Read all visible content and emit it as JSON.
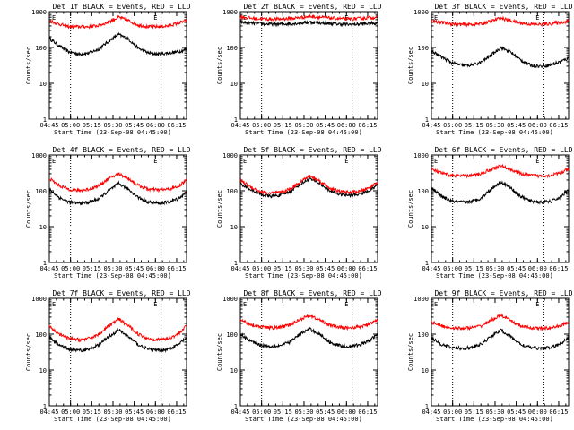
{
  "colors": {
    "events": "#000000",
    "lld": "#ff0000",
    "axis": "#000000",
    "background": "#ffffff"
  },
  "common": {
    "xlabel": "Start Time (23-Sep-08 04:45:00)",
    "ylabel": "Counts/sec",
    "xticks": [
      "04:45",
      "05:00",
      "05:15",
      "05:30",
      "05:45",
      "06:00",
      "06:15"
    ],
    "yticks": [
      "1",
      "10",
      "100",
      "1000"
    ],
    "corner_marker": "E"
  },
  "chart_data": [
    {
      "type": "line",
      "title": "Det 1f BLACK = Events, RED = LLD",
      "xlabel": "Start Time (23-Sep-08 04:45:00)",
      "ylabel": "Counts/sec",
      "x": [
        "04:45",
        "04:52",
        "04:59",
        "05:06",
        "05:13",
        "05:20",
        "05:27",
        "05:34",
        "05:41",
        "05:48",
        "05:55",
        "06:02",
        "06:09",
        "06:16",
        "06:22"
      ],
      "series": [
        {
          "name": "BLACK = Events",
          "values": [
            180,
            110,
            75,
            65,
            70,
            90,
            150,
            230,
            170,
            95,
            70,
            65,
            70,
            75,
            90
          ]
        },
        {
          "name": "RED = LLD",
          "values": [
            560,
            450,
            380,
            380,
            380,
            410,
            520,
            700,
            560,
            420,
            380,
            380,
            400,
            480,
            560
          ]
        }
      ],
      "ylim": [
        1,
        1000
      ],
      "yscale": "log",
      "xlim": [
        "04:45",
        "06:22"
      ],
      "vlines": [
        "05:00",
        "06:04"
      ],
      "grid": false
    },
    {
      "type": "line",
      "title": "Det 2f BLACK = Events, RED = LLD",
      "xlabel": "Start Time (23-Sep-08 04:45:00)",
      "ylabel": "Counts/sec",
      "x": [
        "04:45",
        "04:52",
        "04:59",
        "05:06",
        "05:13",
        "05:20",
        "05:27",
        "05:34",
        "05:41",
        "05:48",
        "05:55",
        "06:02",
        "06:09",
        "06:16",
        "06:22"
      ],
      "series": [
        {
          "name": "BLACK = Events",
          "values": [
            520,
            480,
            460,
            450,
            450,
            460,
            480,
            510,
            490,
            470,
            450,
            440,
            450,
            470,
            480
          ]
        },
        {
          "name": "RED = LLD",
          "values": [
            720,
            660,
            630,
            620,
            620,
            640,
            680,
            740,
            700,
            660,
            640,
            620,
            640,
            680,
            700
          ]
        }
      ],
      "ylim": [
        1,
        1000
      ],
      "yscale": "log",
      "xlim": [
        "04:45",
        "06:22"
      ],
      "vlines": [
        "05:00",
        "06:04"
      ],
      "grid": false
    },
    {
      "type": "line",
      "title": "Det 3f BLACK = Events, RED = LLD",
      "xlabel": "Start Time (23-Sep-08 04:45:00)",
      "ylabel": "Counts/sec",
      "x": [
        "04:45",
        "04:52",
        "04:59",
        "05:06",
        "05:13",
        "05:20",
        "05:27",
        "05:34",
        "05:41",
        "05:48",
        "05:55",
        "06:02",
        "06:09",
        "06:16",
        "06:22"
      ],
      "series": [
        {
          "name": "BLACK = Events",
          "values": [
            80,
            55,
            38,
            32,
            32,
            38,
            60,
            100,
            75,
            45,
            32,
            30,
            32,
            40,
            50
          ]
        },
        {
          "name": "RED = LLD",
          "values": [
            560,
            500,
            460,
            440,
            440,
            460,
            540,
            660,
            560,
            480,
            450,
            440,
            460,
            500,
            540
          ]
        }
      ],
      "ylim": [
        1,
        1000
      ],
      "yscale": "log",
      "xlim": [
        "04:45",
        "06:22"
      ],
      "vlines": [
        "05:00",
        "06:04"
      ],
      "grid": false
    },
    {
      "type": "line",
      "title": "Det 4f BLACK = Events, RED = LLD",
      "xlabel": "Start Time (23-Sep-08 04:45:00)",
      "ylabel": "Counts/sec",
      "x": [
        "04:45",
        "04:52",
        "04:59",
        "05:06",
        "05:13",
        "05:20",
        "05:27",
        "05:34",
        "05:41",
        "05:48",
        "05:55",
        "06:02",
        "06:09",
        "06:16",
        "06:22"
      ],
      "series": [
        {
          "name": "BLACK = Events",
          "values": [
            110,
            65,
            48,
            45,
            48,
            60,
            100,
            160,
            110,
            65,
            48,
            45,
            48,
            60,
            90
          ]
        },
        {
          "name": "RED = LLD",
          "values": [
            220,
            140,
            110,
            100,
            110,
            140,
            220,
            300,
            220,
            140,
            110,
            105,
            110,
            130,
            200
          ]
        }
      ],
      "ylim": [
        1,
        1000
      ],
      "yscale": "log",
      "xlim": [
        "04:45",
        "06:22"
      ],
      "vlines": [
        "05:00",
        "06:04"
      ],
      "grid": false
    },
    {
      "type": "line",
      "title": "Det 5f BLACK = Events, RED = LLD",
      "xlabel": "Start Time (23-Sep-08 04:45:00)",
      "ylabel": "Counts/sec",
      "x": [
        "04:45",
        "04:52",
        "04:59",
        "05:06",
        "05:13",
        "05:20",
        "05:27",
        "05:34",
        "05:41",
        "05:48",
        "05:55",
        "06:02",
        "06:09",
        "06:16",
        "06:22"
      ],
      "series": [
        {
          "name": "BLACK = Events",
          "values": [
            160,
            110,
            80,
            70,
            75,
            95,
            150,
            220,
            160,
            100,
            80,
            75,
            80,
            100,
            150
          ]
        },
        {
          "name": "RED = LLD",
          "values": [
            200,
            130,
            95,
            85,
            90,
            110,
            175,
            260,
            190,
            120,
            95,
            90,
            95,
            120,
            180
          ]
        }
      ],
      "ylim": [
        1,
        1000
      ],
      "yscale": "log",
      "xlim": [
        "04:45",
        "06:22"
      ],
      "vlines": [
        "05:00",
        "06:04"
      ],
      "grid": false
    },
    {
      "type": "line",
      "title": "Det 6f BLACK = Events, RED = LLD",
      "xlabel": "Start Time (23-Sep-08 04:45:00)",
      "ylabel": "Counts/sec",
      "x": [
        "04:45",
        "04:52",
        "04:59",
        "05:06",
        "05:13",
        "05:20",
        "05:27",
        "05:34",
        "05:41",
        "05:48",
        "05:55",
        "06:02",
        "06:09",
        "06:16",
        "06:22"
      ],
      "series": [
        {
          "name": "BLACK = Events",
          "values": [
            120,
            70,
            52,
            48,
            50,
            62,
            110,
            180,
            120,
            70,
            52,
            48,
            50,
            65,
            110
          ]
        },
        {
          "name": "RED = LLD",
          "values": [
            400,
            310,
            270,
            260,
            265,
            300,
            400,
            500,
            400,
            300,
            270,
            260,
            270,
            310,
            400
          ]
        }
      ],
      "ylim": [
        1,
        1000
      ],
      "yscale": "log",
      "xlim": [
        "04:45",
        "06:22"
      ],
      "vlines": [
        "05:00",
        "06:04"
      ],
      "grid": false
    },
    {
      "type": "line",
      "title": "Det 7f BLACK = Events, RED = LLD",
      "xlabel": "Start Time (23-Sep-08 04:45:00)",
      "ylabel": "Counts/sec",
      "x": [
        "04:45",
        "04:52",
        "04:59",
        "05:06",
        "05:13",
        "05:20",
        "05:27",
        "05:34",
        "05:41",
        "05:48",
        "05:55",
        "06:02",
        "06:09",
        "06:16",
        "06:22"
      ],
      "series": [
        {
          "name": "BLACK = Events",
          "values": [
            80,
            50,
            38,
            35,
            38,
            50,
            85,
            130,
            85,
            50,
            38,
            35,
            38,
            50,
            80
          ]
        },
        {
          "name": "RED = LLD",
          "values": [
            160,
            100,
            75,
            70,
            75,
            100,
            170,
            260,
            170,
            100,
            75,
            70,
            75,
            100,
            170
          ]
        }
      ],
      "ylim": [
        1,
        1000
      ],
      "yscale": "log",
      "xlim": [
        "04:45",
        "06:22"
      ],
      "vlines": [
        "05:00",
        "06:04"
      ],
      "grid": false
    },
    {
      "type": "line",
      "title": "Det 8f BLACK = Events, RED = LLD",
      "xlabel": "Start Time (23-Sep-08 04:45:00)",
      "ylabel": "Counts/sec",
      "x": [
        "04:45",
        "04:52",
        "04:59",
        "05:06",
        "05:13",
        "05:20",
        "05:27",
        "05:34",
        "05:41",
        "05:48",
        "05:55",
        "06:02",
        "06:09",
        "06:16",
        "06:22"
      ],
      "series": [
        {
          "name": "BLACK = Events",
          "values": [
            100,
            65,
            50,
            45,
            48,
            60,
            100,
            140,
            100,
            60,
            48,
            45,
            50,
            65,
            100
          ]
        },
        {
          "name": "RED = LLD",
          "values": [
            250,
            190,
            160,
            150,
            155,
            180,
            260,
            330,
            250,
            180,
            155,
            150,
            160,
            190,
            250
          ]
        }
      ],
      "ylim": [
        1,
        1000
      ],
      "yscale": "log",
      "xlim": [
        "04:45",
        "06:22"
      ],
      "vlines": [
        "05:00",
        "06:04"
      ],
      "grid": false
    },
    {
      "type": "line",
      "title": "Det 9f BLACK = Events, RED = LLD",
      "xlabel": "Start Time (23-Sep-08 04:45:00)",
      "ylabel": "Counts/sec",
      "x": [
        "04:45",
        "04:52",
        "04:59",
        "05:06",
        "05:13",
        "05:20",
        "05:27",
        "05:34",
        "05:41",
        "05:48",
        "05:55",
        "06:02",
        "06:09",
        "06:16",
        "06:22"
      ],
      "series": [
        {
          "name": "BLACK = Events",
          "values": [
            80,
            52,
            42,
            40,
            42,
            52,
            85,
            130,
            85,
            52,
            42,
            40,
            42,
            52,
            85
          ]
        },
        {
          "name": "RED = LLD",
          "values": [
            220,
            170,
            150,
            145,
            150,
            170,
            240,
            340,
            240,
            170,
            150,
            145,
            150,
            170,
            220
          ]
        }
      ],
      "ylim": [
        1,
        1000
      ],
      "yscale": "log",
      "xlim": [
        "04:45",
        "06:22"
      ],
      "vlines": [
        "05:00",
        "06:04"
      ],
      "grid": false
    }
  ]
}
